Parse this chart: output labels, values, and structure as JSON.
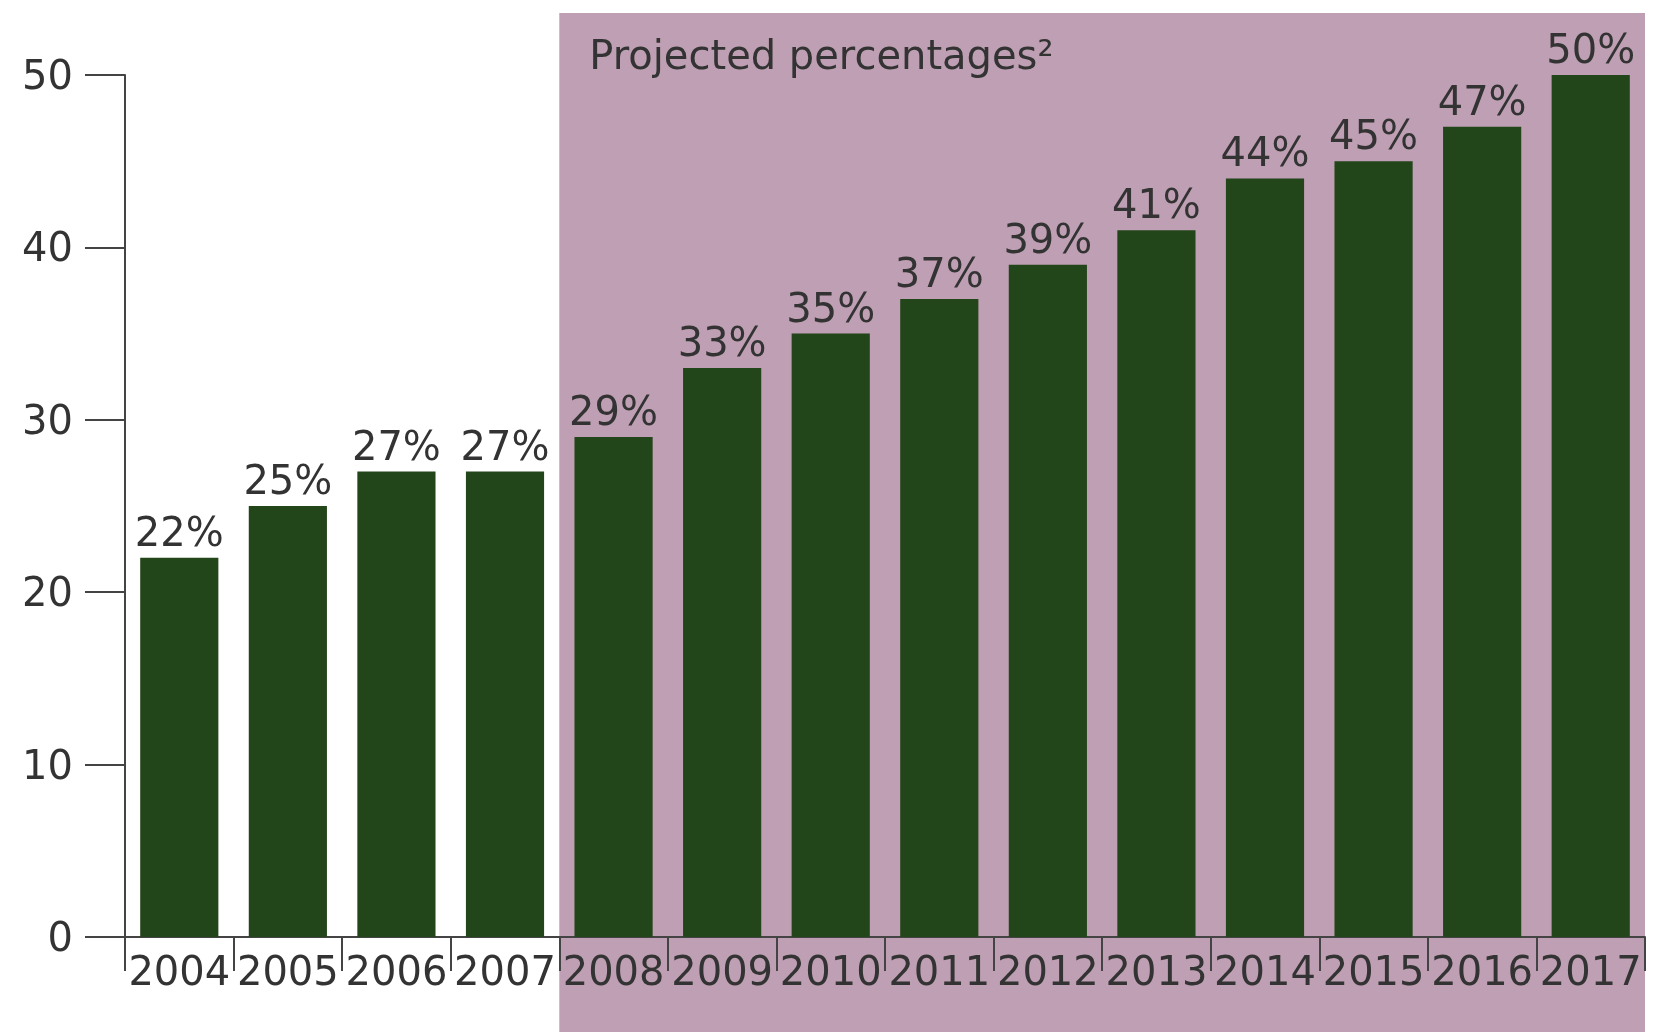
{
  "chart_data": {
    "type": "bar",
    "categories": [
      "2004",
      "2005",
      "2006",
      "2007",
      "2008",
      "2009",
      "2010",
      "2011",
      "2012",
      "2013",
      "2014",
      "2015",
      "2016",
      "2017"
    ],
    "values": [
      22,
      25,
      27,
      27,
      29,
      33,
      35,
      37,
      39,
      41,
      44,
      45,
      47,
      50
    ],
    "value_labels": [
      "22%",
      "25%",
      "27%",
      "27%",
      "29%",
      "33%",
      "35%",
      "37%",
      "39%",
      "41%",
      "44%",
      "45%",
      "47%",
      "50%"
    ],
    "color": "#23451a",
    "ylim": [
      0,
      50
    ],
    "yticks": [
      0,
      10,
      20,
      30,
      40,
      50
    ],
    "grid": false,
    "bands": [
      {
        "axis": "x",
        "from": "2008",
        "to": "2017",
        "label": "Projected percentages²",
        "color": "#bf9fb3"
      }
    ]
  }
}
